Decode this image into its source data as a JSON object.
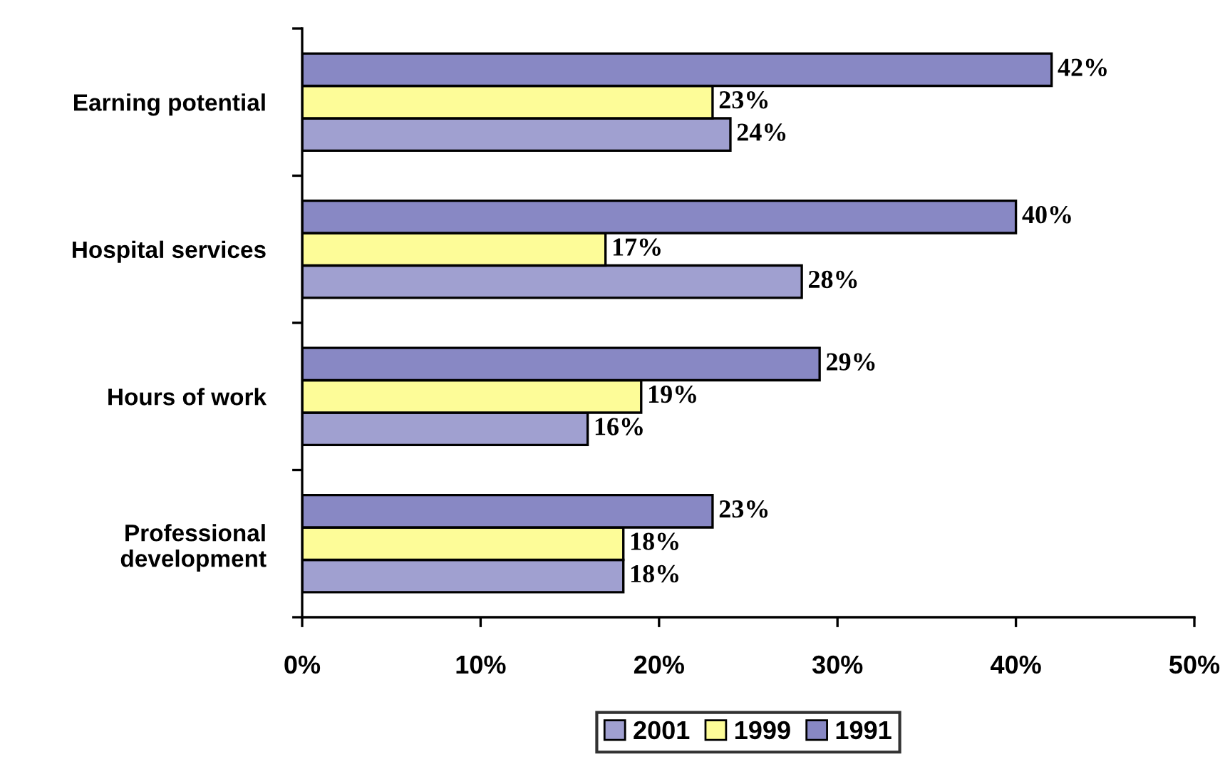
{
  "chart_data": {
    "type": "bar",
    "orientation": "horizontal",
    "categories": [
      "Earning potential",
      "Hospital services",
      "Hours of work",
      "Professional\ndevelopment"
    ],
    "series": [
      {
        "name": "2001",
        "color": "#a0a0d0",
        "values": [
          24,
          28,
          16,
          18
        ],
        "value_labels": [
          "24%",
          "28%",
          "16%",
          "18%"
        ]
      },
      {
        "name": "1999",
        "color": "#fdfc98",
        "values": [
          23,
          17,
          19,
          18
        ],
        "value_labels": [
          "23%",
          "17%",
          "19%",
          "18%"
        ]
      },
      {
        "name": "1991",
        "color": "#8888c4",
        "values": [
          42,
          40,
          29,
          23
        ],
        "value_labels": [
          "42%",
          "40%",
          "29%",
          "23%"
        ]
      }
    ],
    "xlim": [
      0,
      50
    ],
    "xticks": [
      {
        "value": 0,
        "label": "0%"
      },
      {
        "value": 10,
        "label": "10%"
      },
      {
        "value": 20,
        "label": "20%"
      },
      {
        "value": 30,
        "label": "30%"
      },
      {
        "value": 40,
        "label": "40%"
      },
      {
        "value": 50,
        "label": "50%"
      }
    ],
    "grid": false,
    "legend": "bottom"
  }
}
